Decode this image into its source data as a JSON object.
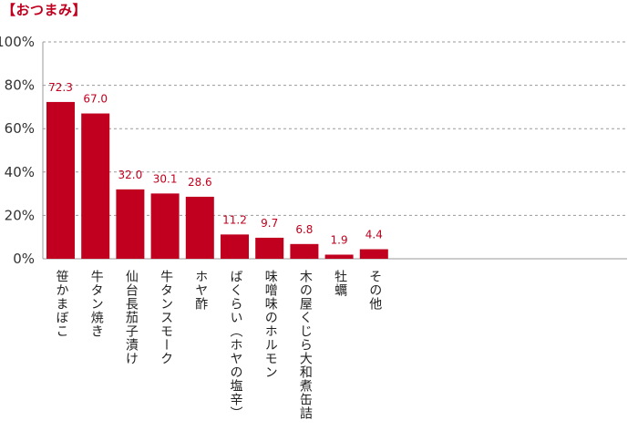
{
  "chart_data": {
    "type": "bar",
    "title": "【おつまみ】",
    "categories": [
      "笹かまぼこ",
      "牛タン焼き",
      "仙台長茄子漬け",
      "牛タンスモーク",
      "ホヤ酢",
      "ばくらい（ホヤの塩辛）",
      "味噌味のホルモン",
      "木の屋くじら大和煮缶詰",
      "牡蠣",
      "その他"
    ],
    "values": [
      72.3,
      67.0,
      32.0,
      30.1,
      28.6,
      11.2,
      9.7,
      6.8,
      1.9,
      4.4
    ],
    "value_labels": [
      "72.3",
      "67.0",
      "32.0",
      "30.1",
      "28.6",
      "11.2",
      "9.7",
      "6.8",
      "1.9",
      "4.4"
    ],
    "xlabel": "",
    "ylabel": "",
    "ylim": [
      0,
      100
    ],
    "yticks": [
      "0%",
      "20%",
      "40%",
      "60%",
      "80%",
      "100%"
    ],
    "bar_color": "#c0001e",
    "grid": "dashed horizontal"
  }
}
